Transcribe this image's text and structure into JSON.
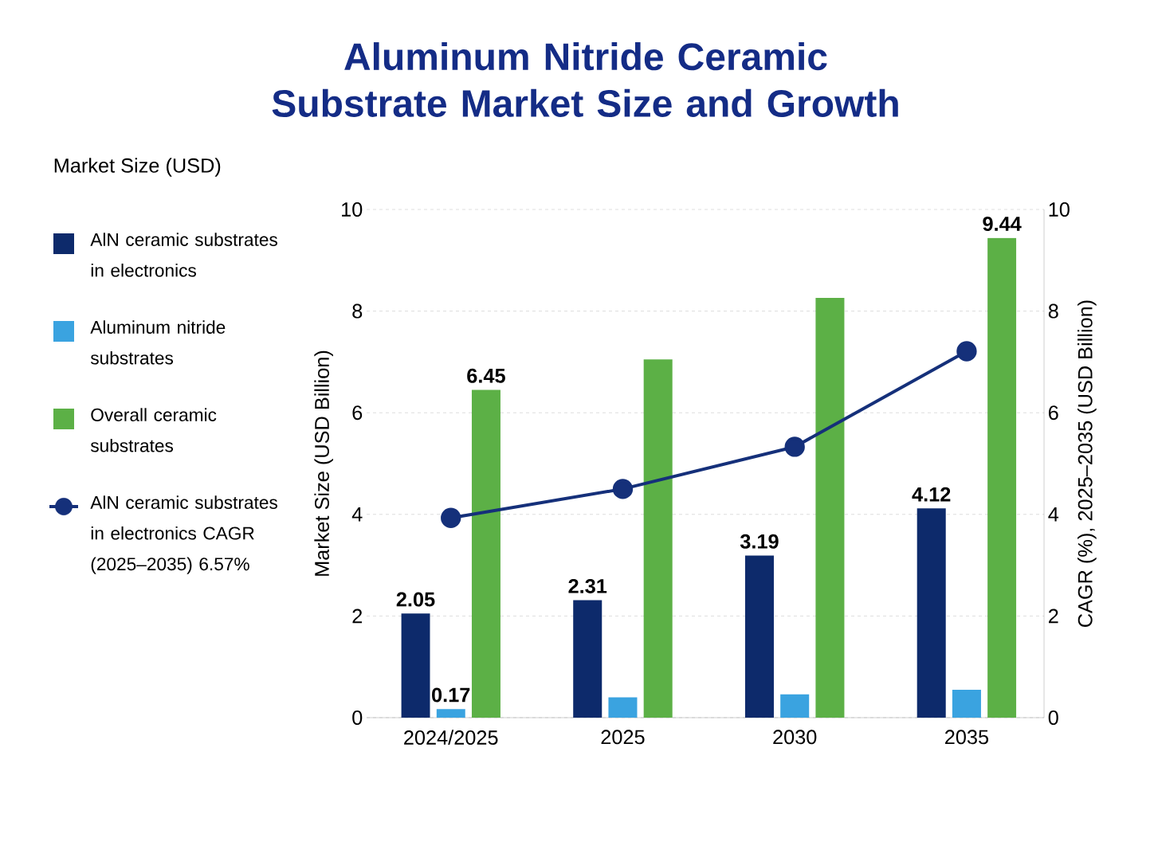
{
  "chart_data": {
    "type": "bar",
    "title": "Aluminum Nitride Ceramic Substrate Market Size and Growth",
    "ylabel": "Market Size (USD Billion)",
    "y2label": "CAGR (%), 2025–2035 (USD Billion)",
    "annotations": [
      "Market Size (USD)"
    ],
    "categories": [
      "2024/2025",
      "2025",
      "2030",
      "2035"
    ],
    "series": [
      {
        "name": "AlN ceramic substrates in electronics",
        "color": "#0d2a6b",
        "values": [
          2.05,
          2.31,
          3.19,
          4.12
        ],
        "value_labels": [
          "2.05",
          "2.31",
          "3.19",
          "4.12"
        ]
      },
      {
        "name": "Aluminum nitride substrates",
        "color": "#3aa3e0",
        "values": [
          0.17,
          0.4,
          0.46,
          0.55
        ],
        "value_labels": [
          "0.17",
          null,
          null,
          null
        ]
      },
      {
        "name": "Overall ceramic substrates",
        "color": "#5cb046",
        "values": [
          6.45,
          7.05,
          8.26,
          9.44
        ],
        "value_labels": [
          "6.45",
          null,
          null,
          "9.44"
        ]
      },
      {
        "name": "AlN ceramic substrates in electronics CAGR (2025–2035) 6.57%",
        "color": "#15307a",
        "type": "line",
        "axis": "y2",
        "marker": "circle",
        "line_style": "solid",
        "values": [
          3.93,
          4.5,
          5.33,
          7.21
        ]
      }
    ],
    "ylim": [
      0,
      10
    ],
    "yticks": [
      0,
      2,
      4,
      6,
      8,
      10
    ],
    "y2lim": [
      0,
      10
    ],
    "y2ticks": [
      0,
      2,
      4,
      6,
      8,
      10
    ],
    "grid": "y",
    "legend": "left"
  }
}
